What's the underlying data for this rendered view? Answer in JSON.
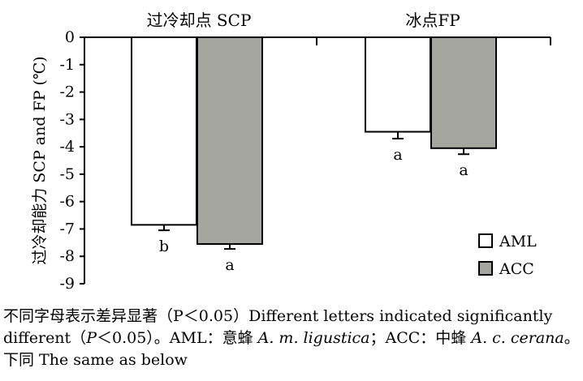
{
  "chart_data": {
    "type": "bar",
    "groups": [
      "过冷却点 SCP",
      "冰点FP"
    ],
    "series": [
      {
        "name": "AML",
        "color": "#ffffff",
        "values": [
          -6.85,
          -3.45
        ],
        "errors": [
          0.2,
          0.25
        ],
        "letters": [
          "b",
          "a"
        ]
      },
      {
        "name": "ACC",
        "color": "#a6a6a0",
        "values": [
          -7.55,
          -4.05
        ],
        "errors": [
          0.18,
          0.22
        ],
        "letters": [
          "a",
          "a"
        ]
      }
    ],
    "ylabel": "过冷却能力 SCP and FP (℃)",
    "ylim": [
      -9,
      0
    ],
    "yticks": [
      0,
      -1,
      -2,
      -3,
      -4,
      -5,
      -6,
      -7,
      -8,
      -9
    ],
    "legend_position": "bottom-right"
  },
  "caption": {
    "line1": "不同字母表示差异显著（P＜0.05）Different letters indicated significantly",
    "line2_a": "different（",
    "line2_p": "P",
    "line2_b": "＜0.05）。AML：意蜂 ",
    "line2_sp1": "A. m. ligustica",
    "line2_c": "；ACC：中蜂 ",
    "line2_sp2": "A. c. cerana",
    "line2_d": "。",
    "line3": "下同  The same as below"
  }
}
